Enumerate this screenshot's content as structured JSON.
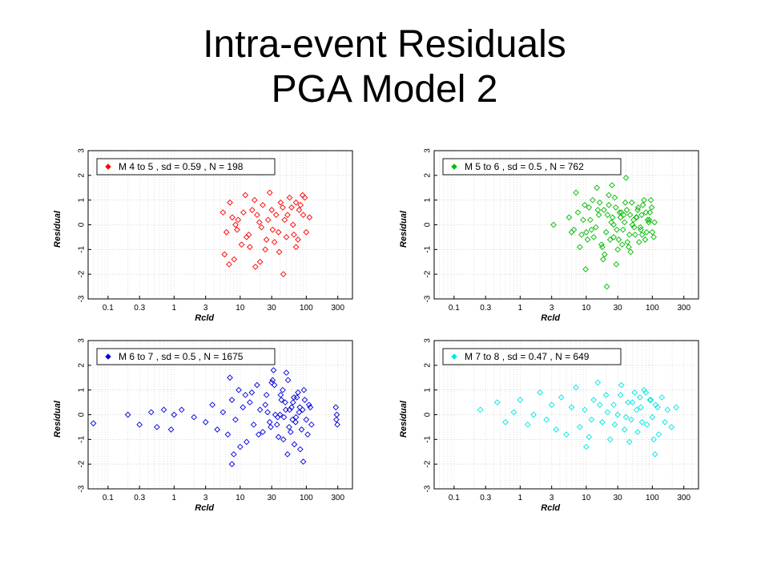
{
  "slide": {
    "title_line1": "Intra-event Residuals",
    "title_line2": "PGA Model 2"
  },
  "chart_data": [
    {
      "type": "scatter",
      "legend": "M 4 to 5 , sd = 0.59 , N = 198",
      "color": "#ff0000",
      "xlabel": "Rcld",
      "ylabel": "Residual",
      "xscale": "log",
      "xlim": [
        0.05,
        500
      ],
      "ylim": [
        -3,
        3
      ],
      "xticks": [
        0.1,
        0.3,
        1,
        3,
        10,
        30,
        100,
        300
      ],
      "xtick_labels": [
        "0.1",
        "0.3",
        "1",
        "3",
        "10",
        "30",
        "100",
        "300"
      ],
      "yticks": [
        -3,
        -2,
        -1,
        0,
        1,
        2,
        3
      ],
      "ytick_labels": [
        "-3",
        "-2",
        "-1",
        "0",
        "1",
        "2",
        "3"
      ],
      "grid": true,
      "legend_position": "top-left",
      "x": [
        5.5,
        6.2,
        7.0,
        8.1,
        9.3,
        10.5,
        12.0,
        13.5,
        15.2,
        17.0,
        19.5,
        22.0,
        25.0,
        28.0,
        31.0,
        35.0,
        39.0,
        44.0,
        50.0,
        56.0,
        63.0,
        70.0,
        78.0,
        88.0,
        100.0,
        112.0,
        6.8,
        7.6,
        9.0,
        11.2,
        14.0,
        16.5,
        21.0,
        26.5,
        33.0,
        41.0,
        52.0,
        65.0,
        82.0,
        95.0,
        8.5,
        12.5,
        18.0,
        24.0,
        30.0,
        38.0,
        47.0,
        60.0,
        75.0,
        90.0,
        5.8,
        20.0,
        45.0,
        70.0
      ],
      "y": [
        0.5,
        -0.3,
        0.9,
        -1.4,
        0.2,
        -0.8,
        1.2,
        -0.4,
        0.6,
        -1.7,
        0.1,
        0.8,
        -0.6,
        1.3,
        -0.2,
        0.4,
        -1.1,
        0.7,
        -0.5,
        1.1,
        0.0,
        -0.9,
        0.6,
        1.2,
        -0.3,
        0.3,
        -1.6,
        0.3,
        -0.2,
        0.5,
        -0.9,
        1.0,
        -0.1,
        0.2,
        -0.7,
        0.9,
        0.4,
        -0.4,
        0.8,
        1.1,
        0.0,
        -0.5,
        0.4,
        -1.0,
        0.6,
        -0.3,
        0.2,
        0.7,
        -0.6,
        0.4,
        -1.2,
        -1.5,
        -2.0,
        0.9
      ]
    },
    {
      "type": "scatter",
      "legend": "M 5 to 6 , sd = 0.5 , N = 762",
      "color": "#00bb00",
      "xlabel": "Rcld",
      "ylabel": "Residual",
      "xscale": "log",
      "xlim": [
        0.05,
        500
      ],
      "ylim": [
        -3,
        3
      ],
      "xticks": [
        0.1,
        0.3,
        1,
        3,
        10,
        30,
        100,
        300
      ],
      "xtick_labels": [
        "0.1",
        "0.3",
        "1",
        "3",
        "10",
        "30",
        "100",
        "300"
      ],
      "yticks": [
        -3,
        -2,
        -1,
        0,
        1,
        2,
        3
      ],
      "ytick_labels": [
        "-3",
        "-2",
        "-1",
        "0",
        "1",
        "2",
        "3"
      ],
      "grid": true,
      "legend_position": "top-left",
      "x": [
        3.2,
        5.5,
        6.5,
        7.5,
        8.5,
        9.5,
        10.5,
        11.5,
        12.5,
        14.0,
        15.5,
        17.0,
        18.5,
        20.0,
        22.0,
        24.0,
        26.0,
        28.0,
        30.0,
        33.0,
        36.0,
        39.0,
        42.0,
        46.0,
        50.0,
        55.0,
        60.0,
        66.0,
        72.0,
        78.0,
        85.0,
        92.0,
        100.0,
        108.0,
        7.0,
        8.0,
        9.0,
        10.0,
        11.0,
        13.0,
        16.0,
        19.0,
        21.0,
        23.0,
        25.0,
        27.0,
        29.0,
        32.0,
        35.0,
        38.0,
        41.0,
        45.0,
        49.0,
        53.0,
        58.0,
        63.0,
        69.0,
        75.0,
        82.0,
        90.0,
        98.0,
        105.0,
        12.0,
        15.0,
        18.0,
        22.0,
        26.0,
        31.0,
        37.0,
        44.0,
        52.0,
        61.0,
        70.0,
        80.0,
        95.0,
        6.0,
        9.8,
        14.5,
        17.5,
        24.5,
        34.0,
        47.0,
        57.0,
        67.0,
        88.0,
        28.5,
        20.5,
        40.0
      ],
      "y": [
        0.0,
        0.3,
        -0.2,
        0.5,
        -0.4,
        0.8,
        -0.6,
        0.2,
        1.0,
        -0.1,
        0.4,
        -0.8,
        0.6,
        -0.3,
        1.2,
        0.1,
        -0.5,
        0.7,
        -1.0,
        0.3,
        -0.2,
        0.9,
        -0.7,
        0.4,
        0.0,
        -0.4,
        0.6,
        -0.1,
        0.8,
        -0.6,
        0.2,
        0.5,
        -0.3,
        0.1,
        1.3,
        -0.9,
        0.2,
        -0.3,
        0.7,
        -0.5,
        0.9,
        -1.2,
        0.4,
        -0.6,
        0.3,
        1.1,
        -0.2,
        0.5,
        -0.8,
        0.1,
        0.6,
        -0.4,
        0.9,
        -0.1,
        0.3,
        -0.7,
        0.4,
        1.0,
        -0.3,
        0.2,
        0.7,
        -0.5,
        -0.2,
        0.6,
        -1.4,
        0.8,
        0.0,
        -0.6,
        0.4,
        -0.9,
        0.2,
        0.7,
        -0.4,
        0.5,
        1.0,
        -0.3,
        -1.8,
        1.5,
        -0.9,
        1.6,
        0.5,
        -1.1,
        0.3,
        -0.2,
        0.1,
        -1.6,
        -2.5,
        1.9
      ]
    },
    {
      "type": "scatter",
      "legend": "M 6 to 7 , sd = 0.5 , N = 1675",
      "color": "#0000dd",
      "xlabel": "Rcld",
      "ylabel": "Residual",
      "xscale": "log",
      "xlim": [
        0.05,
        500
      ],
      "ylim": [
        -3,
        3
      ],
      "xticks": [
        0.1,
        0.3,
        1,
        3,
        10,
        30,
        100,
        300
      ],
      "xtick_labels": [
        "0.1",
        "0.3",
        "1",
        "3",
        "10",
        "30",
        "100",
        "300"
      ],
      "yticks": [
        -3,
        -2,
        -1,
        0,
        1,
        2,
        3
      ],
      "ytick_labels": [
        "-3",
        "-2",
        "-1",
        "0",
        "1",
        "2",
        "3"
      ],
      "grid": true,
      "legend_position": "top-left",
      "x": [
        0.06,
        0.2,
        0.3,
        0.45,
        0.55,
        0.7,
        0.9,
        1.0,
        1.3,
        2.0,
        3.0,
        3.8,
        4.5,
        5.5,
        6.5,
        7.5,
        8.5,
        9.5,
        11.0,
        12.5,
        14.0,
        16.0,
        18.0,
        20.0,
        22.0,
        25.0,
        28.0,
        31.0,
        34.0,
        38.0,
        42.0,
        46.0,
        50.0,
        55.0,
        60.0,
        66.0,
        72.0,
        78.0,
        85.0,
        92.0,
        100.0,
        110.0,
        120.0,
        280.0,
        285.0,
        290.0,
        295.0,
        7.0,
        10.0,
        15.0,
        19.0,
        24.0,
        29.0,
        33.0,
        37.0,
        41.0,
        45.0,
        49.0,
        53.0,
        58.0,
        63.0,
        69.0,
        75.0,
        81.0,
        88.0,
        95.0,
        105.0,
        115.0,
        26.0,
        36.0,
        48.0,
        62.0,
        80.0,
        40.0,
        56.0,
        70.0,
        44.0,
        52.0,
        65.0,
        8.0,
        32.0,
        90.0,
        7.5,
        30.0,
        12.0
      ],
      "y": [
        -0.35,
        0.0,
        -0.4,
        0.1,
        -0.5,
        0.2,
        -0.6,
        0.0,
        0.2,
        -0.1,
        -0.3,
        0.4,
        -0.6,
        0.1,
        -0.8,
        0.6,
        -0.2,
        1.0,
        0.3,
        -1.1,
        0.5,
        -0.4,
        1.2,
        0.2,
        -0.7,
        0.8,
        -0.3,
        1.4,
        0.0,
        -0.9,
        0.6,
        -0.1,
        1.7,
        -0.5,
        0.3,
        -1.2,
        0.7,
        0.1,
        -0.6,
        1.0,
        -0.2,
        0.4,
        -0.4,
        0.3,
        -0.2,
        0.0,
        -0.4,
        1.5,
        -1.3,
        0.9,
        -0.8,
        0.4,
        -0.5,
        1.2,
        -0.1,
        0.8,
        -1.0,
        0.2,
        1.4,
        -0.7,
        0.5,
        -0.3,
        0.9,
        -1.4,
        0.2,
        0.6,
        -0.8,
        0.3,
        0.1,
        -0.4,
        0.5,
        -0.2,
        0.3,
        0.0,
        0.2,
        -0.1,
        1.0,
        -1.6,
        0.7,
        -1.6,
        1.8,
        -1.9,
        -2.0,
        1.3,
        0.8
      ]
    },
    {
      "type": "scatter",
      "legend": "M 7 to 8 , sd = 0.47 , N = 649",
      "color": "#00e5e5",
      "xlabel": "Rcld",
      "ylabel": "Residual",
      "xscale": "log",
      "xlim": [
        0.05,
        500
      ],
      "ylim": [
        -3,
        3
      ],
      "xticks": [
        0.1,
        0.3,
        1,
        3,
        10,
        30,
        100,
        300
      ],
      "xtick_labels": [
        "0.1",
        "0.3",
        "1",
        "3",
        "10",
        "30",
        "100",
        "300"
      ],
      "yticks": [
        -3,
        -2,
        -1,
        0,
        1,
        2,
        3
      ],
      "ytick_labels": [
        "-3",
        "-2",
        "-1",
        "0",
        "1",
        "2",
        "3"
      ],
      "grid": true,
      "legend_position": "top-left",
      "x": [
        0.25,
        0.45,
        0.6,
        0.8,
        1.0,
        1.3,
        1.6,
        2.0,
        2.5,
        3.0,
        3.5,
        4.2,
        5.0,
        6.0,
        7.0,
        8.0,
        9.5,
        11.0,
        13.0,
        15.0,
        17.5,
        20.0,
        23.0,
        26.0,
        30.0,
        34.0,
        38.0,
        43.0,
        48.0,
        54.0,
        60.0,
        67.0,
        75.0,
        83.0,
        92.0,
        100.0,
        112.0,
        125.0,
        140.0,
        155.0,
        170.0,
        195.0,
        230.0,
        12.0,
        16.0,
        21.0,
        27.0,
        33.0,
        40.0,
        50.0,
        58.0,
        70.0,
        80.0,
        95.0,
        105.0,
        120.0,
        10.0,
        45.0,
        65.0,
        110.0
      ],
      "y": [
        0.2,
        0.5,
        -0.3,
        0.1,
        0.6,
        -0.4,
        0.0,
        0.9,
        -0.2,
        0.4,
        -0.6,
        0.7,
        -0.8,
        0.3,
        1.1,
        -0.5,
        0.2,
        -0.9,
        0.6,
        1.3,
        -0.3,
        0.8,
        -1.0,
        0.4,
        0.0,
        1.2,
        -0.6,
        0.5,
        -0.2,
        0.9,
        -0.7,
        0.3,
        1.0,
        -0.4,
        0.6,
        -0.1,
        0.4,
        -0.8,
        0.7,
        -0.3,
        0.2,
        -0.5,
        0.3,
        -0.2,
        0.4,
        0.1,
        -0.4,
        0.8,
        -0.1,
        0.5,
        0.2,
        -0.3,
        0.9,
        0.6,
        -1.0,
        0.3,
        -1.3,
        -1.1,
        0.7,
        -1.6
      ]
    }
  ]
}
